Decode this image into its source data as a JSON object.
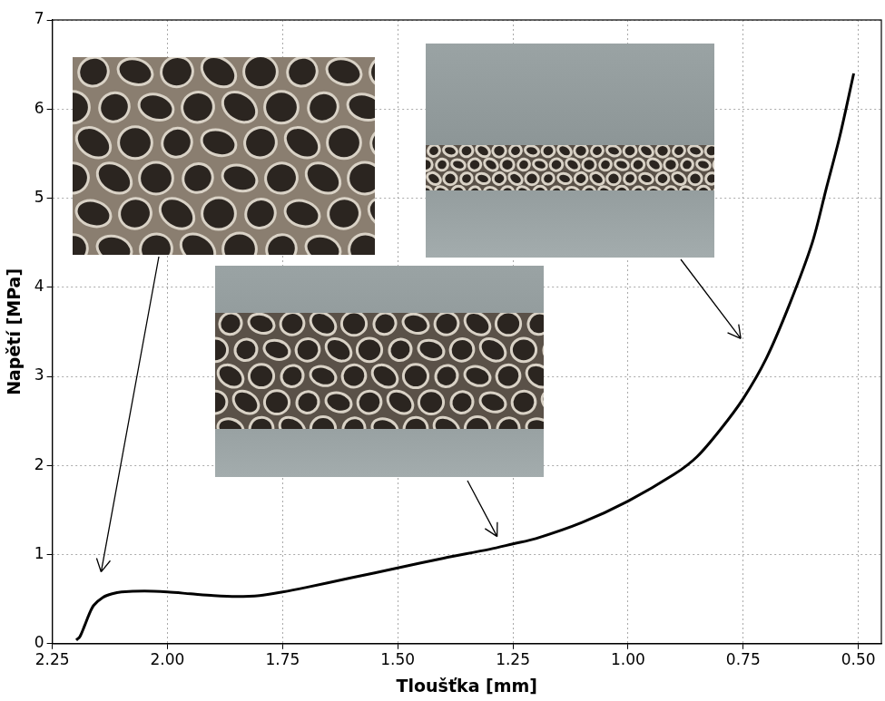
{
  "chart_data": {
    "type": "line",
    "xlabel": "Tloušťka [mm]",
    "ylabel": "Napětí [MPa]",
    "x": [
      2.198,
      2.19,
      2.18,
      2.17,
      2.16,
      2.14,
      2.12,
      2.1,
      2.05,
      2.0,
      1.95,
      1.9,
      1.85,
      1.8,
      1.75,
      1.7,
      1.6,
      1.5,
      1.4,
      1.3,
      1.25,
      1.2,
      1.1,
      1.0,
      0.9,
      0.85,
      0.8,
      0.75,
      0.7,
      0.65,
      0.6,
      0.57,
      0.54,
      0.51
    ],
    "values": [
      0.04,
      0.08,
      0.2,
      0.33,
      0.43,
      0.52,
      0.56,
      0.58,
      0.59,
      0.58,
      0.56,
      0.54,
      0.53,
      0.54,
      0.58,
      0.63,
      0.74,
      0.85,
      0.96,
      1.06,
      1.12,
      1.18,
      1.36,
      1.6,
      1.9,
      2.1,
      2.4,
      2.75,
      3.2,
      3.8,
      4.5,
      5.1,
      5.7,
      6.4
    ],
    "color": "#000000",
    "xlim": [
      2.25,
      0.45
    ],
    "xticks": [
      2.25,
      {
        "value": 2,
        "label": "2.00"
      },
      1.75,
      {
        "value": 1.5,
        "label": "1.50"
      },
      1.25,
      {
        "value": 1,
        "label": "1.00"
      },
      0.75,
      {
        "value": 0.5,
        "label": "0.50"
      }
    ],
    "ylim": [
      0,
      7
    ],
    "yticks": [
      0,
      1,
      2,
      3,
      4,
      5,
      6,
      7
    ],
    "grid": true
  }
}
